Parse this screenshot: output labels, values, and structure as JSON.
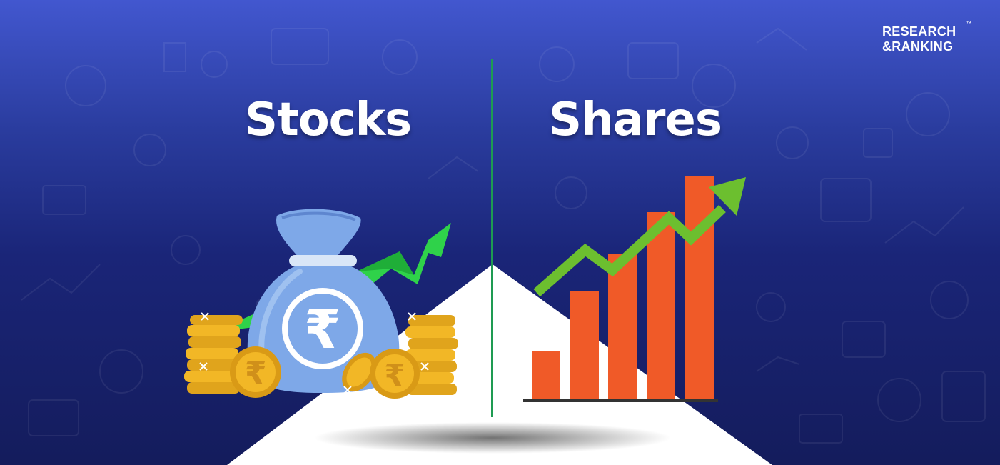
{
  "brand": {
    "logo_line1": "RESEARCH",
    "logo_line2": "&RANKING",
    "trademark": "™"
  },
  "headings": {
    "left": "Stocks",
    "right": "Shares"
  },
  "coin_symbol": "₹",
  "colors": {
    "background_top": "#4257cf",
    "background_bottom": "#141c5c",
    "divider": "#1e9b52",
    "bar": "#f05a28",
    "trend_arrow": "#6cbf2f",
    "bag": "#7ea8e8",
    "coin": "#f2b726",
    "green_arrow": "#2fd24a"
  },
  "icons": [
    "money-bag-icon",
    "rupee-coin-icon",
    "coin-stack-icon",
    "trend-arrow-icon",
    "bar-chart-icon"
  ],
  "bar_chart_values": [
    1,
    2,
    3,
    4,
    5
  ]
}
